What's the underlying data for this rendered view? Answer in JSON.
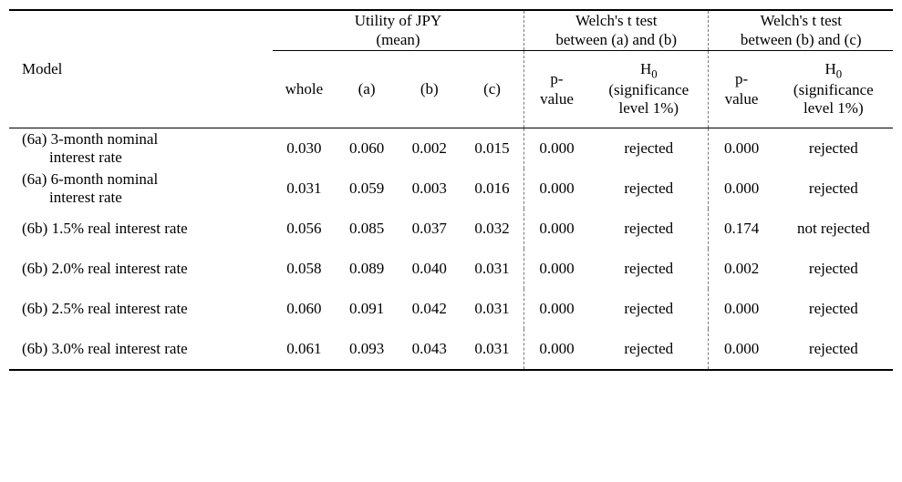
{
  "headers": {
    "model": "Model",
    "utility_group": "Utility of JPY\n(mean)",
    "whole": "whole",
    "a": "(a)",
    "b": "(b)",
    "c": "(c)",
    "test_ab": "Welch's t test\nbetween (a) and (b)",
    "test_bc": "Welch's t test\nbetween (b) and (c)",
    "pval": "p-\nvalue",
    "h0_html": "H<span class=\"sub\">0</span><br>(significance<br>level 1%)"
  },
  "rows": [
    {
      "label_l1": "(6a) 3-month nominal",
      "label_l2": "interest rate",
      "whole": "0.030",
      "a": "0.060",
      "b": "0.002",
      "c": "0.015",
      "p_ab": "0.000",
      "h_ab": "rejected",
      "p_bc": "0.000",
      "h_bc": "rejected"
    },
    {
      "label_l1": "(6a) 6-month nominal",
      "label_l2": "interest rate",
      "whole": "0.031",
      "a": "0.059",
      "b": "0.003",
      "c": "0.016",
      "p_ab": "0.000",
      "h_ab": "rejected",
      "p_bc": "0.000",
      "h_bc": "rejected"
    },
    {
      "label_l1": "(6b) 1.5% real interest rate",
      "label_l2": "",
      "whole": "0.056",
      "a": "0.085",
      "b": "0.037",
      "c": "0.032",
      "p_ab": "0.000",
      "h_ab": "rejected",
      "p_bc": "0.174",
      "h_bc": "not rejected"
    },
    {
      "label_l1": "(6b) 2.0% real interest rate",
      "label_l2": "",
      "whole": "0.058",
      "a": "0.089",
      "b": "0.040",
      "c": "0.031",
      "p_ab": "0.000",
      "h_ab": "rejected",
      "p_bc": "0.002",
      "h_bc": "rejected"
    },
    {
      "label_l1": "(6b) 2.5% real interest rate",
      "label_l2": "",
      "whole": "0.060",
      "a": "0.091",
      "b": "0.042",
      "c": "0.031",
      "p_ab": "0.000",
      "h_ab": "rejected",
      "p_bc": "0.000",
      "h_bc": "rejected"
    },
    {
      "label_l1": "(6b) 3.0% real interest rate",
      "label_l2": "",
      "whole": "0.061",
      "a": "0.093",
      "b": "0.043",
      "c": "0.031",
      "p_ab": "0.000",
      "h_ab": "rejected",
      "p_bc": "0.000",
      "h_bc": "rejected"
    }
  ]
}
